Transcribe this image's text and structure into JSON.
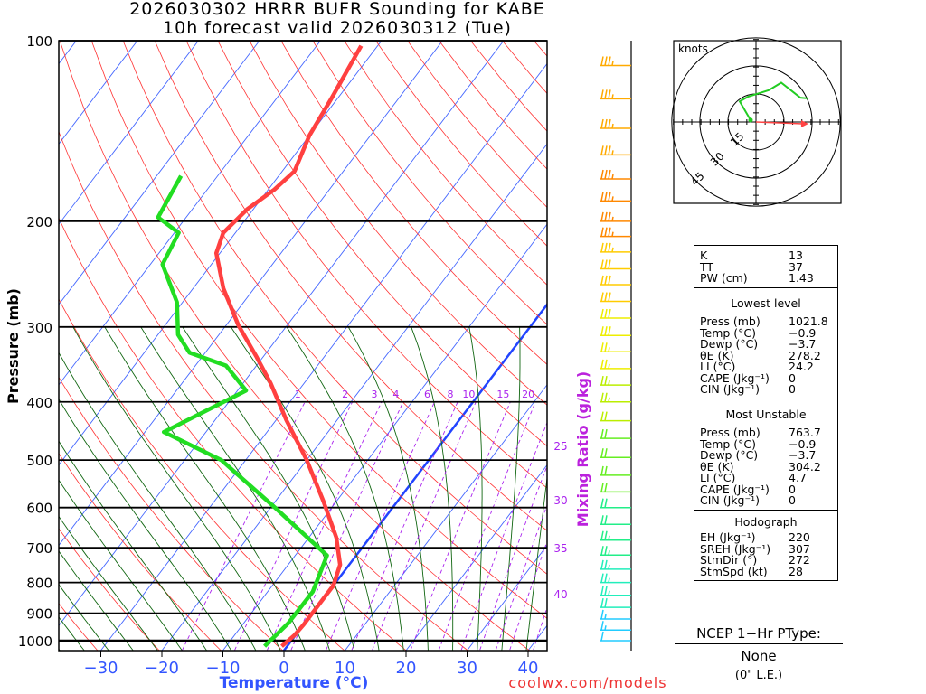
{
  "chart_data": {
    "type": "skew-t",
    "title": "2026030302 HRRR BUFR Sounding for KABE",
    "subtitle": "10h forecast valid 2026030312 (Tue)",
    "ylabel": "Pressure (mb)",
    "xlabel": "Temperature (°C)",
    "mixing_ratio_label": "Mixing Ratio (g/kg)",
    "credit": "coolwx.com/models",
    "pressure_ticks": [
      "100",
      "200",
      "300",
      "400",
      "500",
      "600",
      "700",
      "800",
      "900",
      "1000"
    ],
    "temp_ticks": [
      "−30",
      "−20",
      "−10",
      "0",
      "10",
      "20",
      "30",
      "40"
    ],
    "temp_tick_values": [
      -30,
      -20,
      -10,
      0,
      10,
      20,
      30,
      40
    ],
    "ylim_mb": [
      1040,
      100
    ],
    "mixing_ratio_top_labels": [
      "1",
      "2",
      "3",
      "4",
      "6",
      "8",
      "10",
      "15",
      "20"
    ],
    "mixing_ratio_top_values": [
      1,
      2,
      3,
      4,
      6,
      8,
      10,
      15,
      20
    ],
    "mixing_ratio_side_labels": [
      "25",
      "30",
      "35",
      "40"
    ],
    "temperature": {
      "pressure": [
        1021.8,
        980,
        940,
        809,
        747,
        673,
        586,
        500,
        429,
        373,
        337,
        298,
        259,
        226,
        209,
        191,
        177,
        165,
        144,
        125,
        102
      ],
      "values": [
        -0.9,
        -0.2,
        0,
        0,
        -1.5,
        -5.5,
        -12.1,
        -20,
        -28.3,
        -35.4,
        -41,
        -48,
        -55,
        -60.6,
        -62,
        -61,
        -59,
        -58,
        -60,
        -61,
        -62.7
      ],
      "color": "#ff4040"
    },
    "dewpoint": {
      "pressure": [
        1021.8,
        935,
        829,
        721,
        597,
        500,
        449,
        383,
        348,
        331,
        309,
        273,
        236,
        209,
        197,
        168
      ],
      "values": [
        -3.7,
        -2.7,
        -2.6,
        -4.8,
        -19.7,
        -34,
        -46.9,
        -38.6,
        -45,
        -52.6,
        -56.7,
        -60.9,
        -68,
        -69.3,
        -74.6,
        -76
      ],
      "color": "#22dd22"
    },
    "highlight_isotherm_c": 0,
    "wind_barbs": {
      "pressure": [
        110,
        125,
        140,
        155,
        170,
        185,
        200,
        212,
        225,
        240,
        255,
        272,
        290,
        310,
        330,
        352,
        375,
        400,
        430,
        460,
        495,
        530,
        565,
        600,
        640,
        680,
        720,
        760,
        800,
        840,
        880,
        920,
        960,
        1000
      ],
      "speed_kt": [
        35,
        35,
        35,
        35,
        35,
        35,
        35,
        35,
        35,
        30,
        30,
        30,
        30,
        30,
        25,
        25,
        25,
        25,
        20,
        20,
        20,
        20,
        20,
        20,
        20,
        25,
        25,
        25,
        25,
        25,
        20,
        15,
        15,
        10
      ]
    },
    "hodograph": {
      "unit_label": "knots",
      "ring_labels": [
        "15",
        "30",
        "45"
      ],
      "u_kt": [
        -2.9,
        -8.7,
        -4.3,
        6.8,
        13.5,
        23.7,
        27.5
      ],
      "v_kt": [
        1,
        11,
        13.5,
        17,
        21,
        13,
        12.6
      ],
      "storm_motion_dir_deg": 272,
      "storm_motion_kt": 28
    }
  },
  "stats": {
    "indices": [
      {
        "k": "K",
        "v": "13"
      },
      {
        "k": "TT",
        "v": "37"
      },
      {
        "k": "PW (cm)",
        "v": "1.43"
      }
    ],
    "lowest": {
      "title": "Lowest level",
      "rows": [
        {
          "k": "Press (mb)",
          "v": "1021.8"
        },
        {
          "k": "Temp (°C)",
          "v": "−0.9"
        },
        {
          "k": "Dewp (°C)",
          "v": "−3.7"
        },
        {
          "k": "θE (K)",
          "v": "278.2"
        },
        {
          "k": "LI (°C)",
          "v": "24.2"
        },
        {
          "k": "CAPE (Jkg⁻¹)",
          "v": "0"
        },
        {
          "k": "CIN (Jkg⁻¹)",
          "v": "0"
        }
      ]
    },
    "most_unstable": {
      "title": "Most Unstable",
      "rows": [
        {
          "k": "Press (mb)",
          "v": "763.7"
        },
        {
          "k": "Temp (°C)",
          "v": "−0.9"
        },
        {
          "k": "Dewp (°C)",
          "v": "−3.7"
        },
        {
          "k": "θE (K)",
          "v": "304.2"
        },
        {
          "k": "LI (°C)",
          "v": "4.7"
        },
        {
          "k": "CAPE (Jkg⁻¹)",
          "v": "0"
        },
        {
          "k": "CIN (Jkg⁻¹)",
          "v": "0"
        }
      ]
    },
    "hodo": {
      "title": "Hodograph",
      "rows": [
        {
          "k": "EH (Jkg⁻¹)",
          "v": "220"
        },
        {
          "k": "SREH (Jkg⁻¹)",
          "v": "307"
        },
        {
          "k": "StmDir (°)",
          "v": "272"
        },
        {
          "k": "StmSpd (kt)",
          "v": "28"
        }
      ]
    }
  },
  "ptype": {
    "label": "NCEP 1−Hr PType:",
    "value": "None",
    "sub": "(0\" L.E.)"
  }
}
